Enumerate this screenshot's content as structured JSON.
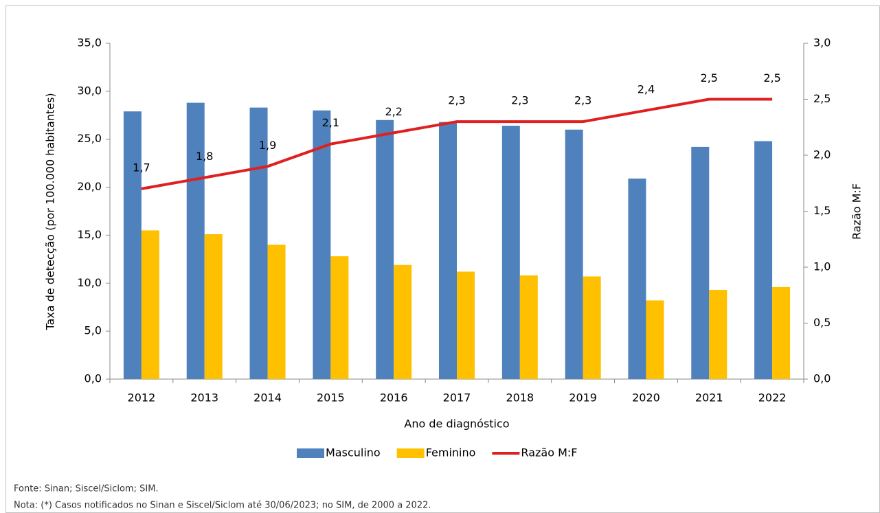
{
  "chart_data": {
    "type": "bar",
    "x_label": "Ano de diagnóstico",
    "y_label": "Taxa de detecção (por 100.000 habitantes)",
    "y2_label": "Razão M:F",
    "categories": [
      "2012",
      "2013",
      "2014",
      "2015",
      "2016",
      "2017",
      "2018",
      "2019",
      "2020",
      "2021",
      "2022"
    ],
    "series": [
      {
        "name": "Masculino",
        "color": "#4f81bd",
        "values": [
          27.9,
          28.8,
          28.3,
          28.0,
          27.0,
          26.8,
          26.4,
          26.0,
          20.9,
          24.2,
          24.8
        ]
      },
      {
        "name": "Feminino",
        "color": "#ffc000",
        "values": [
          15.5,
          15.1,
          14.0,
          12.8,
          11.9,
          11.2,
          10.8,
          10.7,
          8.2,
          9.3,
          9.6
        ]
      },
      {
        "name": "Razão M:F",
        "color": "#e02020",
        "type": "line",
        "axis": "y2",
        "values": [
          1.7,
          1.8,
          1.9,
          2.1,
          2.2,
          2.3,
          2.3,
          2.3,
          2.4,
          2.5,
          2.5
        ],
        "value_labels": [
          "1,7",
          "1,8",
          "1,9",
          "2,1",
          "2,2",
          "2,3",
          "2,3",
          "2,3",
          "2,4",
          "2,5",
          "2,5"
        ]
      }
    ],
    "ylim": [
      0,
      35
    ],
    "yticks": [
      {
        "value": 0,
        "label": "0,0"
      },
      {
        "value": 5,
        "label": "5,0"
      },
      {
        "value": 10,
        "label": "10,0"
      },
      {
        "value": 15,
        "label": "15,0"
      },
      {
        "value": 20,
        "label": "20,0"
      },
      {
        "value": 25,
        "label": "25,0"
      },
      {
        "value": 30,
        "label": "30,0"
      },
      {
        "value": 35,
        "label": "35,0"
      }
    ],
    "y2lim": [
      0,
      3
    ],
    "y2ticks": [
      {
        "value": 0,
        "label": "0,0"
      },
      {
        "value": 0.5,
        "label": "0,5"
      },
      {
        "value": 1,
        "label": "1,0"
      },
      {
        "value": 1.5,
        "label": "1,5"
      },
      {
        "value": 2,
        "label": "2,0"
      },
      {
        "value": 2.5,
        "label": "2,5"
      },
      {
        "value": 3,
        "label": "3,0"
      }
    ],
    "legend": "bottom",
    "source": "Fonte: Sinan; Siscel/Siclom; SIM.",
    "note": "Nota: (*) Casos notificados no Sinan e Siscel/Siclom até 30/06/2023; no SIM, de 2000 a 2022."
  }
}
